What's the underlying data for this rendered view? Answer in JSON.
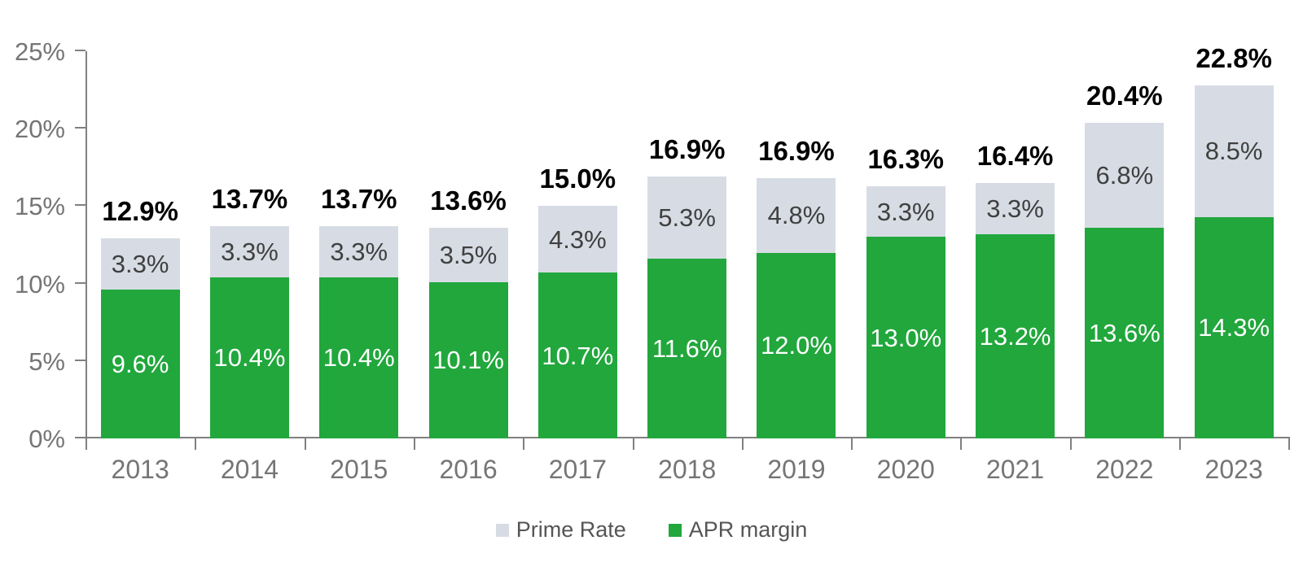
{
  "chart_data": {
    "type": "bar",
    "stacked": true,
    "title": "",
    "categories": [
      "2013",
      "2014",
      "2015",
      "2016",
      "2017",
      "2018",
      "2019",
      "2020",
      "2021",
      "2022",
      "2023"
    ],
    "series": [
      {
        "name": "APR margin",
        "color": "#21a73c",
        "label_color": "#ffffff",
        "values": [
          9.6,
          10.4,
          10.4,
          10.1,
          10.7,
          11.6,
          12.0,
          13.0,
          13.2,
          13.6,
          14.3
        ],
        "labels": [
          "9.6%",
          "10.4%",
          "10.4%",
          "10.1%",
          "10.7%",
          "11.6%",
          "12.0%",
          "13.0%",
          "13.2%",
          "13.6%",
          "14.3%"
        ]
      },
      {
        "name": "Prime Rate",
        "color": "#d7dce4",
        "label_color": "#404040",
        "values": [
          3.3,
          3.3,
          3.3,
          3.5,
          4.3,
          5.3,
          4.8,
          3.3,
          3.3,
          6.8,
          8.5
        ],
        "labels": [
          "3.3%",
          "3.3%",
          "3.3%",
          "3.5%",
          "4.3%",
          "5.3%",
          "4.8%",
          "3.3%",
          "3.3%",
          "6.8%",
          "8.5%"
        ]
      }
    ],
    "totals": [
      12.9,
      13.7,
      13.7,
      13.6,
      15.0,
      16.9,
      16.9,
      16.3,
      16.4,
      20.4,
      22.8
    ],
    "total_labels": [
      "12.9%",
      "13.7%",
      "13.7%",
      "13.6%",
      "15.0%",
      "16.9%",
      "16.9%",
      "16.3%",
      "16.4%",
      "20.4%",
      "22.8%"
    ],
    "y_axis": {
      "min": 0,
      "max": 25,
      "tick_step": 5,
      "tick_labels": [
        "0%",
        "5%",
        "10%",
        "15%",
        "20%",
        "25%"
      ]
    },
    "grid": false,
    "legend": {
      "position": "bottom",
      "items": [
        {
          "label": "Prime Rate",
          "color": "#d7dce4"
        },
        {
          "label": "APR margin",
          "color": "#21a73c"
        }
      ]
    },
    "colors": {
      "axis": "#808080",
      "axis_text": "#757575",
      "total_text": "#000000",
      "legend_text": "#555555",
      "background": "#ffffff"
    }
  }
}
